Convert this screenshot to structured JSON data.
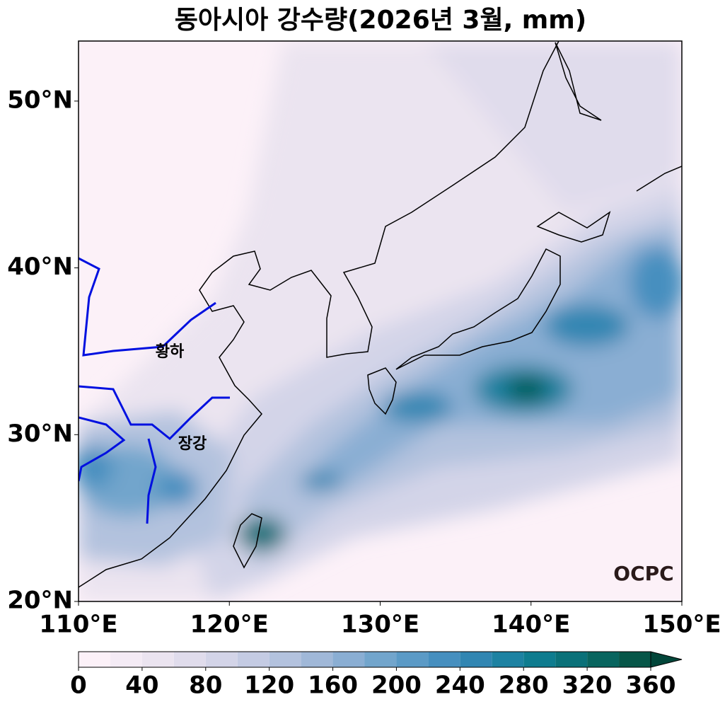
{
  "title": "동아시아 강수량(2026년 3월, mm)",
  "map": {
    "xlim": [
      110,
      150
    ],
    "ylim": [
      20,
      53.6
    ],
    "xticks": [
      {
        "value": 110,
        "label": "110°E"
      },
      {
        "value": 120,
        "label": "120°E"
      },
      {
        "value": 130,
        "label": "130°E"
      },
      {
        "value": 140,
        "label": "140°E"
      },
      {
        "value": 150,
        "label": "150°E"
      }
    ],
    "yticks": [
      {
        "value": 20,
        "label": "20°N"
      },
      {
        "value": 30,
        "label": "30°N"
      },
      {
        "value": 40,
        "label": "40°N"
      },
      {
        "value": 50,
        "label": "50°N"
      }
    ],
    "rivers": [
      "황하",
      "장강"
    ],
    "logo": "OCPC"
  },
  "colorbar": {
    "levels": [
      0,
      20,
      40,
      60,
      80,
      100,
      120,
      140,
      160,
      180,
      200,
      220,
      240,
      260,
      280,
      300,
      320,
      340,
      360
    ],
    "colors": [
      "#fcf1f8",
      "#f4ebf5",
      "#ebe4f0",
      "#e0dcec",
      "#d3d4e8",
      "#c4cbe3",
      "#b3c2de",
      "#a0b8d8",
      "#8aaed3",
      "#72a5cc",
      "#5b9ac6",
      "#468fbf",
      "#3186b2",
      "#1d82a2",
      "#0e7c8f",
      "#0a7179",
      "#08655f",
      "#065648"
    ],
    "extend_color": "#02463a",
    "ticks": [
      0,
      40,
      80,
      120,
      160,
      200,
      240,
      280,
      320,
      360
    ]
  }
}
